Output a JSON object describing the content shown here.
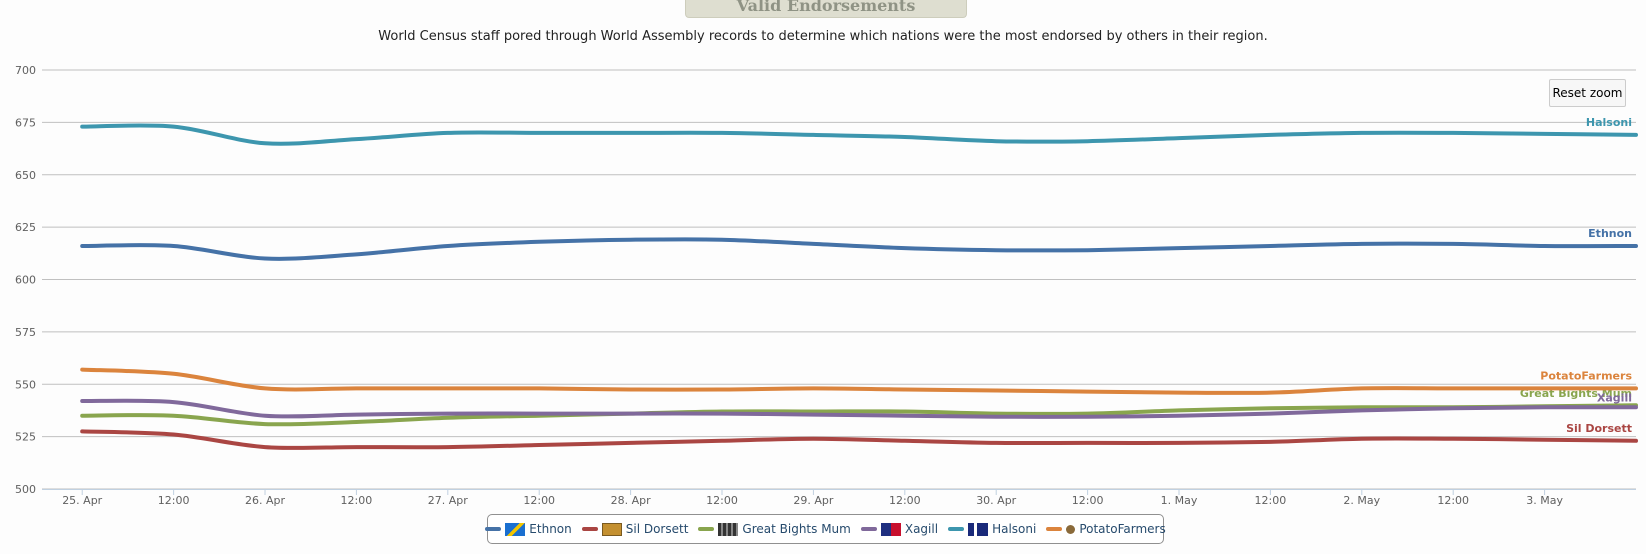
{
  "chart_data": {
    "type": "line",
    "title": "Valid Endorsements",
    "subtitle": "World Census staff pored through World Assembly records to determine which nations were the most endorsed by others in their region.",
    "ylim": [
      500,
      700
    ],
    "yticks": [
      500,
      525,
      550,
      575,
      600,
      625,
      650,
      675,
      700
    ],
    "x": [
      0,
      0.5,
      1,
      1.5,
      2,
      2.5,
      3,
      3.5,
      4,
      4.5,
      5,
      5.5,
      6,
      6.5,
      7,
      7.5,
      8,
      8.5
    ],
    "xlim": [
      -0.22,
      8.5
    ],
    "xtick_labels": [
      "25. Apr",
      "12:00",
      "26. Apr",
      "12:00",
      "27. Apr",
      "12:00",
      "28. Apr",
      "12:00",
      "29. Apr",
      "12:00",
      "30. Apr",
      "12:00",
      "1. May",
      "12:00",
      "2. May",
      "12:00",
      "3. May"
    ],
    "grid": "horizontal",
    "legend_position": "bottom-center",
    "series": [
      {
        "name": "Ethnon",
        "color": "#4572a7",
        "flag": "ethnon-flag-icon",
        "values": [
          616,
          616,
          610,
          612,
          616,
          618,
          619,
          619,
          617,
          615,
          614,
          614,
          615,
          616,
          617,
          617,
          616,
          616
        ]
      },
      {
        "name": "Sil Dorsett",
        "color": "#aa4643",
        "flag": "sil-dorsett-flag-icon",
        "values": [
          527.5,
          526,
          520,
          520,
          520,
          521,
          522,
          523,
          524,
          523,
          522,
          522,
          522,
          522.5,
          524,
          524,
          523.5,
          523
        ]
      },
      {
        "name": "Great Bights Mum",
        "color": "#89a54e",
        "flag": "great-bights-mum-flag-icon",
        "values": [
          535,
          535,
          531,
          532,
          534,
          535,
          536,
          537,
          537,
          537,
          536,
          536,
          537.5,
          538.5,
          539,
          539,
          539.5,
          540
        ]
      },
      {
        "name": "Xagill",
        "color": "#80699b",
        "flag": "xagill-flag-icon",
        "values": [
          542,
          541.5,
          535,
          535.5,
          536,
          536,
          536,
          536,
          535.5,
          535,
          534.5,
          534.5,
          535,
          536,
          537.5,
          538.5,
          539,
          539
        ]
      },
      {
        "name": "Halsoni",
        "color": "#3d96ae",
        "flag": "halsoni-flag-icon",
        "values": [
          673,
          673,
          665,
          667,
          670,
          670,
          670,
          670,
          669,
          668,
          666,
          666,
          667.5,
          669,
          670,
          670,
          669.5,
          669
        ]
      },
      {
        "name": "PotatoFarmers",
        "color": "#db843d",
        "flag": "potatofarmers-flag-icon",
        "values": [
          557,
          555,
          548,
          548,
          548,
          548,
          547.5,
          547.5,
          548,
          547.5,
          547,
          546.5,
          546,
          546,
          548,
          548,
          548,
          548
        ]
      }
    ]
  },
  "ui": {
    "reset_zoom_label": "Reset zoom",
    "grid_color": "#c0c0c0",
    "axis_color": "#c0d0e0",
    "tick_label_color": "#606060"
  }
}
